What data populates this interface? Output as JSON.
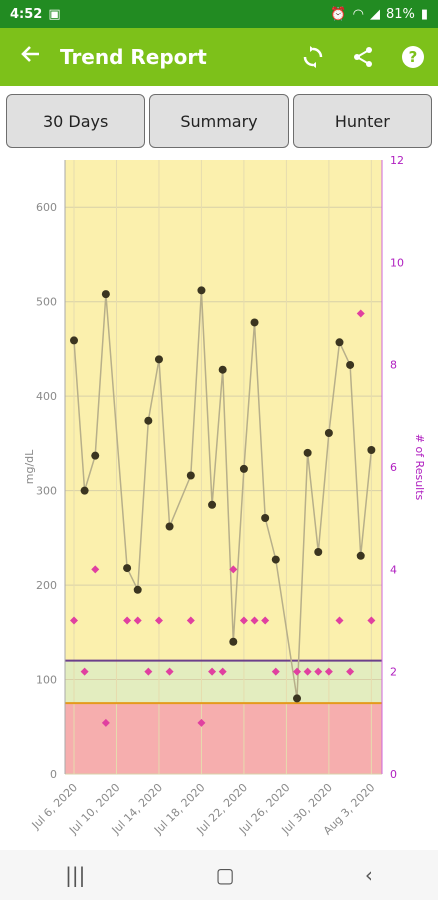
{
  "status": {
    "time": "4:52",
    "battery": "81%",
    "icons": [
      "image-icon",
      "alarm-icon",
      "wifi-icon",
      "signal-icon",
      "battery-icon"
    ]
  },
  "appbar": {
    "title": "Trend Report",
    "actions": [
      "sync-icon",
      "share-icon",
      "help-icon"
    ]
  },
  "tabs": [
    {
      "label": "30 Days"
    },
    {
      "label": "Summary"
    },
    {
      "label": "Hunter"
    }
  ],
  "chart_data": {
    "type": "line",
    "ylabel": "mg/dL",
    "y2label": "# of Results",
    "ylim": [
      0,
      650
    ],
    "y2lim": [
      0,
      12
    ],
    "yticks": [
      "0",
      "100",
      "200",
      "300",
      "400",
      "500",
      "600"
    ],
    "y2ticks": [
      "0",
      "2",
      "4",
      "6",
      "8",
      "10",
      "12"
    ],
    "xticks": [
      "Jul 6, 2020",
      "Jul 10, 2020",
      "Jul 14, 2020",
      "Jul 18, 2020",
      "Jul 22, 2020",
      "Jul 26, 2020",
      "Jul 30, 2020",
      "Aug 3, 2020"
    ],
    "dates": [
      "Jul 6",
      "Jul 7",
      "Jul 8",
      "Jul 9",
      "Jul 10",
      "Jul 11",
      "Jul 12",
      "Jul 13",
      "Jul 14",
      "Jul 15",
      "Jul 16",
      "Jul 17",
      "Jul 18",
      "Jul 19",
      "Jul 20",
      "Jul 21",
      "Jul 22",
      "Jul 23",
      "Jul 24",
      "Jul 25",
      "Jul 26",
      "Jul 27",
      "Jul 28",
      "Jul 29",
      "Jul 30",
      "Jul 31",
      "Aug 1",
      "Aug 2",
      "Aug 3",
      "Aug 4"
    ],
    "averages": [
      459,
      300,
      337,
      508,
      null,
      218,
      195,
      374,
      439,
      262,
      null,
      316,
      512,
      285,
      428,
      140,
      323,
      478,
      271,
      227,
      null,
      80,
      340,
      235,
      361,
      457,
      433,
      231,
      343,
      null
    ],
    "counts": [
      3,
      2,
      4,
      1,
      null,
      3,
      3,
      2,
      3,
      2,
      null,
      3,
      1,
      2,
      2,
      4,
      3,
      3,
      3,
      2,
      null,
      2,
      2,
      2,
      2,
      3,
      2,
      9,
      3,
      null
    ],
    "ranges": {
      "high": 120,
      "low": 75
    },
    "colors": {
      "high_zone": "#fbf0ad",
      "target_zone": "#e3edbf",
      "low_zone": "#f6aeae",
      "high_line": "#6b3f8b",
      "low_line": "#e59a1b",
      "average": "#3b3520",
      "line": "#b7af8a",
      "count": "#e040a0",
      "y2_text": "#b020c0"
    }
  }
}
